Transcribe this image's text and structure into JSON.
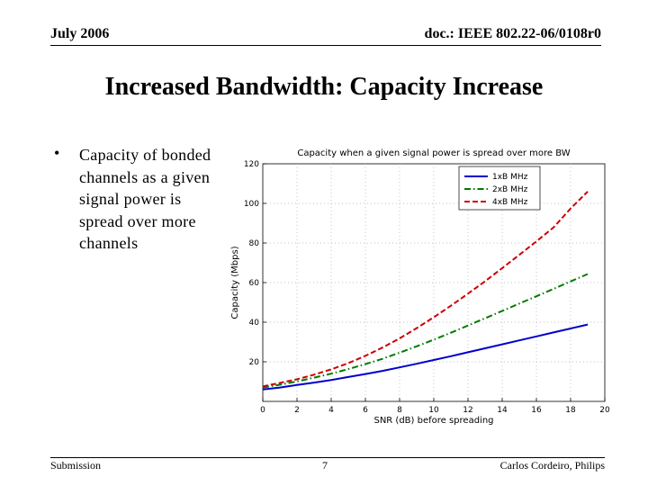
{
  "header": {
    "date": "July 2006",
    "doc_id": "doc.: IEEE 802.22-06/0108r0"
  },
  "slide": {
    "title": "Increased Bandwidth: Capacity Increase",
    "bullet_symbol": "•",
    "bullet_text": "Capacity of bonded channels as a given signal power is spread over more channels"
  },
  "footer": {
    "left": "Submission",
    "page": "7",
    "author": "Carlos Cordeiro, Philips"
  },
  "chart_data": {
    "type": "line",
    "title": "Capacity when a given signal power is spread over more BW",
    "xlabel": "SNR (dB) before spreading",
    "ylabel": "Capacity (Mbps)",
    "xlim": [
      0,
      20
    ],
    "ylim": [
      0,
      120
    ],
    "xticks": [
      0,
      2,
      4,
      6,
      8,
      10,
      12,
      14,
      16,
      18,
      20
    ],
    "yticks": [
      20,
      40,
      60,
      80,
      100,
      120
    ],
    "grid": true,
    "legend_position": "top-right",
    "x": [
      0,
      1,
      2,
      3,
      4,
      5,
      6,
      7,
      8,
      9,
      10,
      11,
      12,
      13,
      14,
      15,
      16,
      17,
      18,
      19
    ],
    "series": [
      {
        "name": "1xB MHz",
        "color": "#0000cc",
        "dash": "solid",
        "values": [
          6.0,
          7.0,
          8.3,
          9.5,
          10.8,
          12.3,
          13.8,
          15.4,
          17.2,
          19.0,
          20.9,
          22.8,
          24.8,
          26.8,
          28.8,
          30.8,
          32.8,
          34.8,
          36.8,
          38.8
        ]
      },
      {
        "name": "2xB MHz",
        "color": "#007a00",
        "dash": "dashdot",
        "values": [
          7.0,
          8.4,
          10.1,
          12.0,
          14.0,
          16.3,
          18.8,
          21.5,
          24.6,
          27.8,
          31.2,
          34.7,
          38.3,
          42.0,
          45.7,
          49.4,
          53.1,
          56.8,
          60.6,
          64.3
        ]
      },
      {
        "name": "4xB MHz",
        "color": "#cc0000",
        "dash": "dashed",
        "values": [
          7.6,
          9.3,
          11.2,
          13.5,
          16.2,
          19.3,
          23.0,
          27.2,
          31.8,
          37.0,
          42.5,
          48.3,
          54.4,
          60.7,
          67.3,
          74.0,
          80.8,
          87.8,
          97.4,
          106.0
        ]
      }
    ]
  }
}
